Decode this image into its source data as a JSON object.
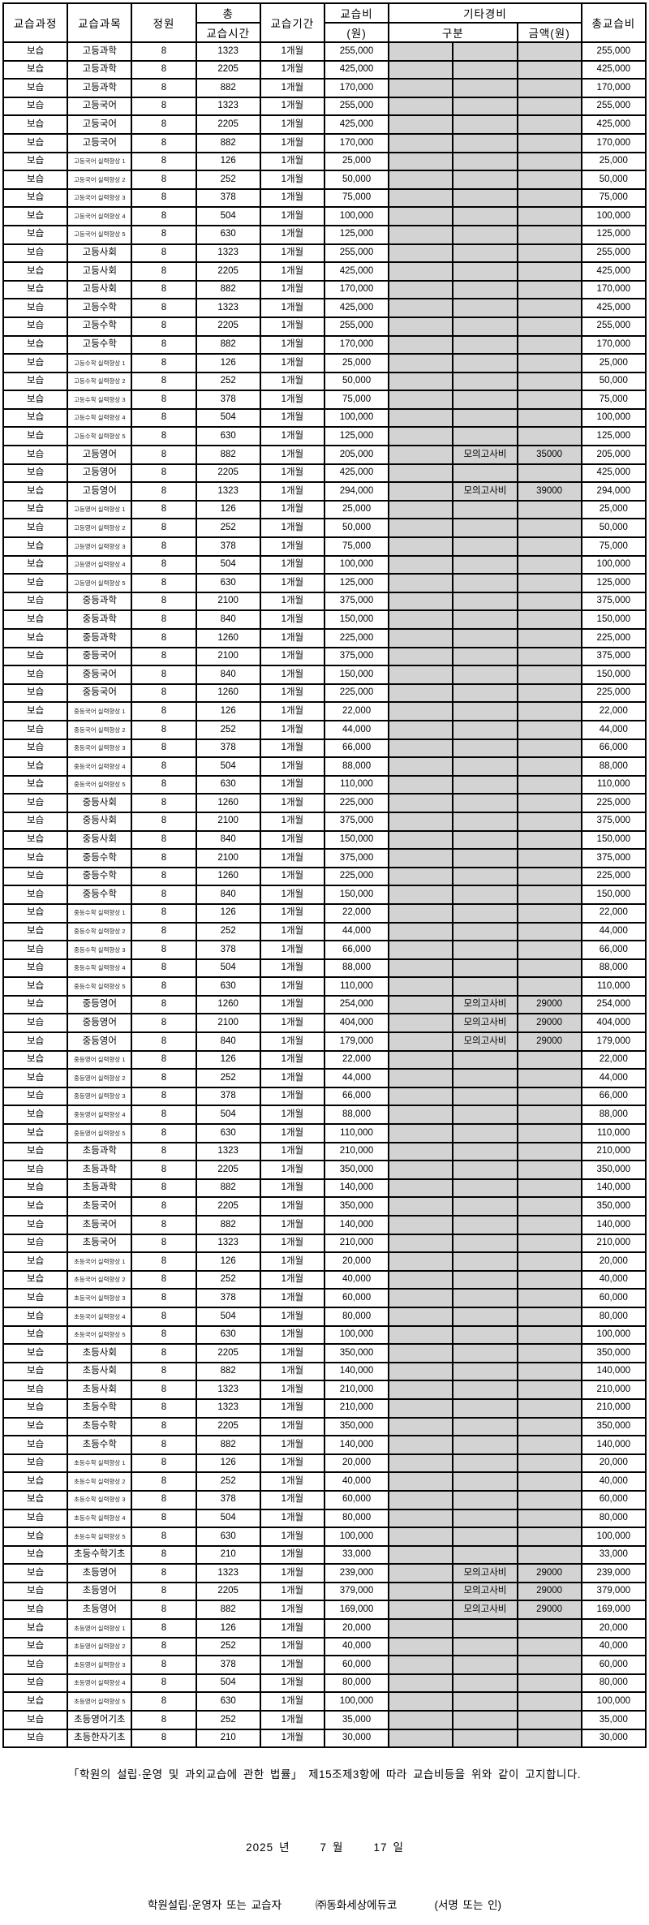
{
  "colors": {
    "shaded_cell": "#d3d3d3",
    "border": "#000000",
    "background": "#ffffff"
  },
  "table": {
    "headers": {
      "course": "교습과정",
      "subject": "교습과목",
      "capacity": "정원",
      "hours_top": "총",
      "hours_bottom": "교습시간",
      "period": "교습기간",
      "fee_top": "교습비",
      "fee_bottom": "(원)",
      "etc": "기타경비",
      "etc_type": "구분",
      "etc_amount": "금액(원)"
    },
    "total_header": "총교습비",
    "row_defaults": {
      "course": "보습",
      "capacity": "8",
      "period": "1개월"
    },
    "rows": [
      [
        "고등과학",
        "1323",
        "255,000",
        "",
        "",
        "255,000"
      ],
      [
        "고등과학",
        "2205",
        "425,000",
        "",
        "",
        "425,000"
      ],
      [
        "고등과학",
        "882",
        "170,000",
        "",
        "",
        "170,000"
      ],
      [
        "고등국어",
        "1323",
        "255,000",
        "",
        "",
        "255,000"
      ],
      [
        "고등국어",
        "2205",
        "425,000",
        "",
        "",
        "425,000"
      ],
      [
        "고등국어",
        "882",
        "170,000",
        "",
        "",
        "170,000"
      ],
      [
        "고등국어 실력향상 1",
        "126",
        "25,000",
        "",
        "",
        "25,000"
      ],
      [
        "고등국어 실력향상 2",
        "252",
        "50,000",
        "",
        "",
        "50,000"
      ],
      [
        "고등국어 실력향상 3",
        "378",
        "75,000",
        "",
        "",
        "75,000"
      ],
      [
        "고등국어 실력향상 4",
        "504",
        "100,000",
        "",
        "",
        "100,000"
      ],
      [
        "고등국어 실력향상 5",
        "630",
        "125,000",
        "",
        "",
        "125,000"
      ],
      [
        "고등사회",
        "1323",
        "255,000",
        "",
        "",
        "255,000"
      ],
      [
        "고등사회",
        "2205",
        "425,000",
        "",
        "",
        "425,000"
      ],
      [
        "고등사회",
        "882",
        "170,000",
        "",
        "",
        "170,000"
      ],
      [
        "고등수학",
        "1323",
        "425,000",
        "",
        "",
        "425,000"
      ],
      [
        "고등수학",
        "2205",
        "255,000",
        "",
        "",
        "255,000"
      ],
      [
        "고등수학",
        "882",
        "170,000",
        "",
        "",
        "170,000"
      ],
      [
        "고등수학 실력향상 1",
        "126",
        "25,000",
        "",
        "",
        "25,000"
      ],
      [
        "고등수학 실력향상 2",
        "252",
        "50,000",
        "",
        "",
        "50,000"
      ],
      [
        "고등수학 실력향상 3",
        "378",
        "75,000",
        "",
        "",
        "75,000"
      ],
      [
        "고등수학 실력향상 4",
        "504",
        "100,000",
        "",
        "",
        "100,000"
      ],
      [
        "고등수학 실력향상 5",
        "630",
        "125,000",
        "",
        "",
        "125,000"
      ],
      [
        "고등영어",
        "882",
        "205,000",
        "모의고사비",
        "35000",
        "205,000"
      ],
      [
        "고등영어",
        "2205",
        "425,000",
        "",
        "",
        "425,000"
      ],
      [
        "고등영어",
        "1323",
        "294,000",
        "모의고사비",
        "39000",
        "294,000"
      ],
      [
        "고등영어 실력향상 1",
        "126",
        "25,000",
        "",
        "",
        "25,000"
      ],
      [
        "고등영어 실력향상 2",
        "252",
        "50,000",
        "",
        "",
        "50,000"
      ],
      [
        "고등영어 실력향상 3",
        "378",
        "75,000",
        "",
        "",
        "75,000"
      ],
      [
        "고등영어 실력향상 4",
        "504",
        "100,000",
        "",
        "",
        "100,000"
      ],
      [
        "고등영어 실력향상 5",
        "630",
        "125,000",
        "",
        "",
        "125,000"
      ],
      [
        "중등과학",
        "2100",
        "375,000",
        "",
        "",
        "375,000"
      ],
      [
        "중등과학",
        "840",
        "150,000",
        "",
        "",
        "150,000"
      ],
      [
        "중등과학",
        "1260",
        "225,000",
        "",
        "",
        "225,000"
      ],
      [
        "중등국어",
        "2100",
        "375,000",
        "",
        "",
        "375,000"
      ],
      [
        "중등국어",
        "840",
        "150,000",
        "",
        "",
        "150,000"
      ],
      [
        "중등국어",
        "1260",
        "225,000",
        "",
        "",
        "225,000"
      ],
      [
        "중등국어 실력향상 1",
        "126",
        "22,000",
        "",
        "",
        "22,000"
      ],
      [
        "중등국어 실력향상 2",
        "252",
        "44,000",
        "",
        "",
        "44,000"
      ],
      [
        "중등국어 실력향상 3",
        "378",
        "66,000",
        "",
        "",
        "66,000"
      ],
      [
        "중등국어 실력향상 4",
        "504",
        "88,000",
        "",
        "",
        "88,000"
      ],
      [
        "중등국어 실력향상 5",
        "630",
        "110,000",
        "",
        "",
        "110,000"
      ],
      [
        "중등사회",
        "1260",
        "225,000",
        "",
        "",
        "225,000"
      ],
      [
        "중등사회",
        "2100",
        "375,000",
        "",
        "",
        "375,000"
      ],
      [
        "중등사회",
        "840",
        "150,000",
        "",
        "",
        "150,000"
      ],
      [
        "중등수학",
        "2100",
        "375,000",
        "",
        "",
        "375,000"
      ],
      [
        "중등수학",
        "1260",
        "225,000",
        "",
        "",
        "225,000"
      ],
      [
        "중등수학",
        "840",
        "150,000",
        "",
        "",
        "150,000"
      ],
      [
        "중등수학 실력향상 1",
        "126",
        "22,000",
        "",
        "",
        "22,000"
      ],
      [
        "중등수학 실력향상 2",
        "252",
        "44,000",
        "",
        "",
        "44,000"
      ],
      [
        "중등수학 실력향상 3",
        "378",
        "66,000",
        "",
        "",
        "66,000"
      ],
      [
        "중등수학 실력향상 4",
        "504",
        "88,000",
        "",
        "",
        "88,000"
      ],
      [
        "중등수학 실력향상 5",
        "630",
        "110,000",
        "",
        "",
        "110,000"
      ],
      [
        "중등영어",
        "1260",
        "254,000",
        "모의고사비",
        "29000",
        "254,000"
      ],
      [
        "중등영어",
        "2100",
        "404,000",
        "모의고사비",
        "29000",
        "404,000"
      ],
      [
        "중등영어",
        "840",
        "179,000",
        "모의고사비",
        "29000",
        "179,000"
      ],
      [
        "중등영어 실력향상 1",
        "126",
        "22,000",
        "",
        "",
        "22,000"
      ],
      [
        "중등영어 실력향상 2",
        "252",
        "44,000",
        "",
        "",
        "44,000"
      ],
      [
        "중등영어 실력향상 3",
        "378",
        "66,000",
        "",
        "",
        "66,000"
      ],
      [
        "중등영어 실력향상 4",
        "504",
        "88,000",
        "",
        "",
        "88,000"
      ],
      [
        "중등영어 실력향상 5",
        "630",
        "110,000",
        "",
        "",
        "110,000"
      ],
      [
        "초등과학",
        "1323",
        "210,000",
        "",
        "",
        "210,000"
      ],
      [
        "초등과학",
        "2205",
        "350,000",
        "",
        "",
        "350,000"
      ],
      [
        "초등과학",
        "882",
        "140,000",
        "",
        "",
        "140,000"
      ],
      [
        "초등국어",
        "2205",
        "350,000",
        "",
        "",
        "350,000"
      ],
      [
        "초등국어",
        "882",
        "140,000",
        "",
        "",
        "140,000"
      ],
      [
        "초등국어",
        "1323",
        "210,000",
        "",
        "",
        "210,000"
      ],
      [
        "초등국어 실력향상 1",
        "126",
        "20,000",
        "",
        "",
        "20,000"
      ],
      [
        "초등국어 실력향상 2",
        "252",
        "40,000",
        "",
        "",
        "40,000"
      ],
      [
        "초등국어 실력향상 3",
        "378",
        "60,000",
        "",
        "",
        "60,000"
      ],
      [
        "초등국어 실력향상 4",
        "504",
        "80,000",
        "",
        "",
        "80,000"
      ],
      [
        "초등국어 실력향상 5",
        "630",
        "100,000",
        "",
        "",
        "100,000"
      ],
      [
        "초등사회",
        "2205",
        "350,000",
        "",
        "",
        "350,000"
      ],
      [
        "초등사회",
        "882",
        "140,000",
        "",
        "",
        "140,000"
      ],
      [
        "초등사회",
        "1323",
        "210,000",
        "",
        "",
        "210,000"
      ],
      [
        "초등수학",
        "1323",
        "210,000",
        "",
        "",
        "210,000"
      ],
      [
        "초등수학",
        "2205",
        "350,000",
        "",
        "",
        "350,000"
      ],
      [
        "초등수학",
        "882",
        "140,000",
        "",
        "",
        "140,000"
      ],
      [
        "초등수학 실력향상 1",
        "126",
        "20,000",
        "",
        "",
        "20,000"
      ],
      [
        "초등수학 실력향상 2",
        "252",
        "40,000",
        "",
        "",
        "40,000"
      ],
      [
        "초등수학 실력향상 3",
        "378",
        "60,000",
        "",
        "",
        "60,000"
      ],
      [
        "초등수학 실력향상 4",
        "504",
        "80,000",
        "",
        "",
        "80,000"
      ],
      [
        "초등수학 실력향상 5",
        "630",
        "100,000",
        "",
        "",
        "100,000"
      ],
      [
        "초등수학기초",
        "210",
        "33,000",
        "",
        "",
        "33,000"
      ],
      [
        "초등영어",
        "1323",
        "239,000",
        "모의고사비",
        "29000",
        "239,000"
      ],
      [
        "초등영어",
        "2205",
        "379,000",
        "모의고사비",
        "29000",
        "379,000"
      ],
      [
        "초등영어",
        "882",
        "169,000",
        "모의고사비",
        "29000",
        "169,000"
      ],
      [
        "초등영어 실력향상 1",
        "126",
        "20,000",
        "",
        "",
        "20,000"
      ],
      [
        "초등영어 실력향상 2",
        "252",
        "40,000",
        "",
        "",
        "40,000"
      ],
      [
        "초등영어 실력향상 3",
        "378",
        "60,000",
        "",
        "",
        "60,000"
      ],
      [
        "초등영어 실력향상 4",
        "504",
        "80,000",
        "",
        "",
        "80,000"
      ],
      [
        "초등영어 실력향상 5",
        "630",
        "100,000",
        "",
        "",
        "100,000"
      ],
      [
        "초등영어기초",
        "252",
        "35,000",
        "",
        "",
        "35,000"
      ],
      [
        "초등한자기초",
        "210",
        "30,000",
        "",
        "",
        "30,000"
      ]
    ]
  },
  "footer": {
    "notice": "「학원의 설립·운영 및 과외교습에 관한 법률」  제15조제3항에 따라 교습비등을 위와 같이 고지합니다.",
    "date": {
      "year": "2025",
      "year_label": "년",
      "month": "7",
      "month_label": "월",
      "day": "17",
      "day_label": "일"
    },
    "signer_label": "학원설립·운영자 또는 교습자",
    "signer_name": "㈜동화세상에듀코",
    "seal_label": "(서명 또는 인)"
  }
}
